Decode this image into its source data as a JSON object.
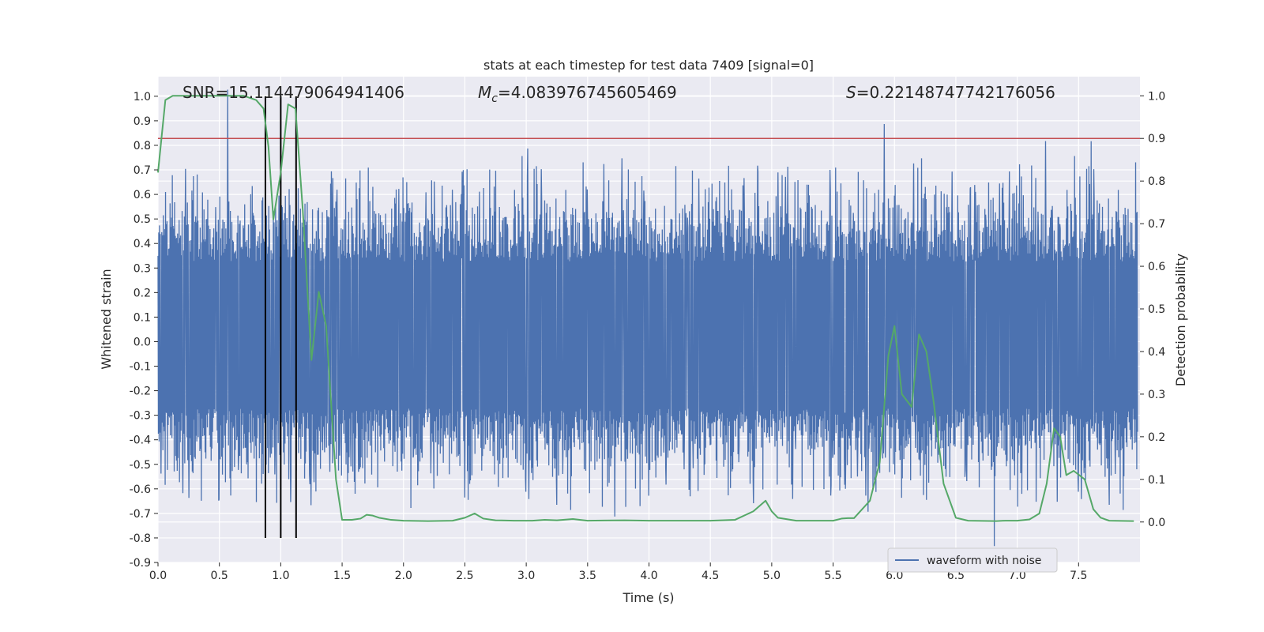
{
  "chart_data": {
    "type": "line",
    "title": "stats at each timestep for test data 7409 [signal=0]",
    "xlabel": "Time (s)",
    "ylabel": "Whitened strain",
    "y2label": "Detection probability",
    "xlim": [
      0.0,
      8.0
    ],
    "ylim": [
      -0.9,
      1.08
    ],
    "y2lim": [
      -0.095,
      1.045
    ],
    "x_ticks": [
      "0.0",
      "0.5",
      "1.0",
      "1.5",
      "2.0",
      "2.5",
      "3.0",
      "3.5",
      "4.0",
      "4.5",
      "5.0",
      "5.5",
      "6.0",
      "6.5",
      "7.0",
      "7.5"
    ],
    "y_ticks": [
      "-0.9",
      "-0.8",
      "-0.7",
      "-0.6",
      "-0.5",
      "-0.4",
      "-0.3",
      "-0.2",
      "-0.1",
      "0.0",
      "0.1",
      "0.2",
      "0.3",
      "0.4",
      "0.5",
      "0.6",
      "0.7",
      "0.8",
      "0.9",
      "1.0"
    ],
    "y2_ticks": [
      "0.0",
      "0.1",
      "0.2",
      "0.3",
      "0.4",
      "0.5",
      "0.6",
      "0.7",
      "0.8",
      "0.9",
      "1.0"
    ],
    "annotations": {
      "snr": "SNR=15.114479064941406",
      "mc_symbol": "M",
      "mc_sub": "c",
      "mc_value": "=4.083976745605469",
      "s_symbol": "S",
      "s_value": "=0.22148747742176056"
    },
    "threshold": {
      "value": 0.9,
      "axis": "right",
      "color": "#c44e52"
    },
    "vertical_lines": {
      "x": [
        0.875,
        1.0,
        1.125
      ],
      "color": "#000000"
    },
    "series": [
      {
        "name": "waveform with noise",
        "axis": "left",
        "color": "#4c72b0",
        "summary": {
          "dense_band": [
            -0.27,
            0.45
          ],
          "peaks": [
            {
              "x": 0.57,
              "y": 1.0
            },
            {
              "x": 5.93,
              "y": 0.86
            },
            {
              "x": 3.02,
              "y": 0.76
            },
            {
              "x": 3.79,
              "y": 0.72
            },
            {
              "x": 7.25,
              "y": 0.79
            },
            {
              "x": 7.62,
              "y": 0.79
            }
          ],
          "troughs": [
            {
              "x": 6.83,
              "y": -0.86
            },
            {
              "x": 3.73,
              "y": -0.74
            },
            {
              "x": 3.63,
              "y": -0.7
            },
            {
              "x": 0.5,
              "y": -0.67
            },
            {
              "x": 5.8,
              "y": -0.72
            }
          ]
        }
      },
      {
        "name": "",
        "axis": "right",
        "color": "#55a868",
        "x": [
          0.0,
          0.06,
          0.12,
          0.2,
          0.3,
          0.4,
          0.5,
          0.6,
          0.7,
          0.8,
          0.86,
          0.9,
          0.94,
          1.0,
          1.06,
          1.12,
          1.18,
          1.25,
          1.31,
          1.37,
          1.45,
          1.5,
          1.58,
          1.65,
          1.7,
          1.75,
          1.8,
          1.9,
          2.0,
          2.2,
          2.4,
          2.5,
          2.58,
          2.65,
          2.75,
          2.9,
          3.05,
          3.15,
          3.25,
          3.38,
          3.5,
          3.8,
          4.0,
          4.3,
          4.5,
          4.7,
          4.85,
          4.95,
          5.0,
          5.05,
          5.2,
          5.4,
          5.5,
          5.57,
          5.62,
          5.67,
          5.8,
          5.88,
          5.95,
          6.0,
          6.06,
          6.14,
          6.2,
          6.26,
          6.32,
          6.4,
          6.5,
          6.6,
          6.83,
          6.9,
          7.0,
          7.1,
          7.18,
          7.24,
          7.3,
          7.35,
          7.4,
          7.46,
          7.55,
          7.62,
          7.68,
          7.75,
          7.95
        ],
        "values": [
          0.82,
          0.99,
          1.0,
          1.0,
          1.0,
          1.0,
          1.0,
          1.0,
          1.0,
          0.99,
          0.97,
          0.88,
          0.71,
          0.82,
          0.98,
          0.97,
          0.73,
          0.38,
          0.54,
          0.46,
          0.1,
          0.005,
          0.005,
          0.008,
          0.017,
          0.015,
          0.01,
          0.005,
          0.003,
          0.002,
          0.003,
          0.01,
          0.02,
          0.008,
          0.004,
          0.003,
          0.003,
          0.005,
          0.004,
          0.007,
          0.003,
          0.004,
          0.003,
          0.003,
          0.003,
          0.005,
          0.025,
          0.05,
          0.025,
          0.01,
          0.003,
          0.003,
          0.003,
          0.008,
          0.009,
          0.009,
          0.05,
          0.14,
          0.39,
          0.46,
          0.3,
          0.27,
          0.44,
          0.4,
          0.28,
          0.09,
          0.01,
          0.003,
          0.002,
          0.003,
          0.003,
          0.006,
          0.02,
          0.09,
          0.22,
          0.2,
          0.11,
          0.12,
          0.1,
          0.03,
          0.01,
          0.003,
          0.002
        ]
      }
    ],
    "legend": {
      "location": "lower-right",
      "entries": [
        "waveform with noise"
      ]
    },
    "grid": true
  }
}
